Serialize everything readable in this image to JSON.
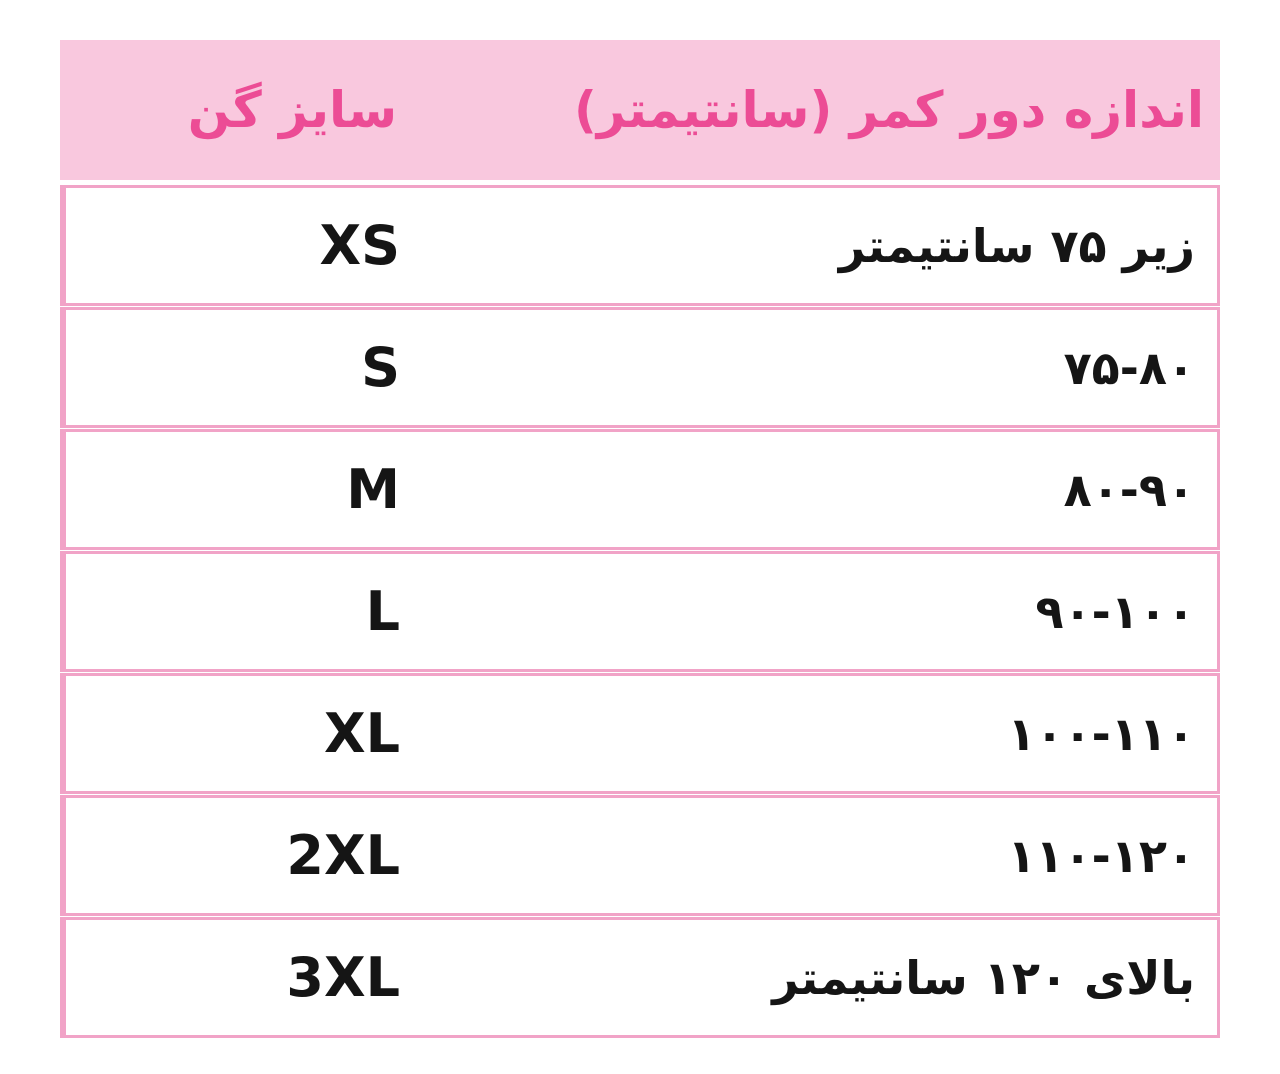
{
  "colors": {
    "header_bg": "#F9C8DE",
    "header_text": "#EC4C95",
    "border": "#F1A3C7",
    "cell_bg": "#FFFFFF",
    "cell_text": "#151515",
    "page_bg": "#FFFFFF"
  },
  "table": {
    "direction": "rtl",
    "header": {
      "measure_label": "اندازه دور کمر (سانتیمتر)",
      "size_label": "سایز گن"
    },
    "rows": [
      {
        "size": "XS",
        "measure": "زیر ۷۵ سانتیمتر"
      },
      {
        "size": "S",
        "measure": "۷۵-۸۰"
      },
      {
        "size": "M",
        "measure": "۸۰-۹۰"
      },
      {
        "size": "L",
        "measure": "۹۰-۱۰۰"
      },
      {
        "size": "XL",
        "measure": "۱۰۰-۱۱۰"
      },
      {
        "size": "2XL",
        "measure": "۱۱۰-۱۲۰"
      },
      {
        "size": "3XL",
        "measure": "بالای ۱۲۰ سانتیمتر"
      }
    ]
  }
}
